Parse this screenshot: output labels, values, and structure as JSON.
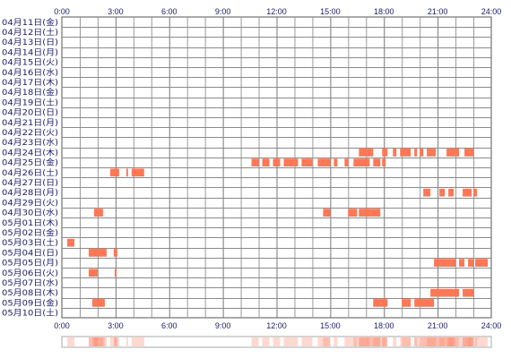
{
  "chart_data": {
    "type": "timeline-heatmap",
    "x_unit": "hour",
    "xlim": [
      0,
      24
    ],
    "x_ticks": [
      {
        "value": 0,
        "label": "0:00"
      },
      {
        "value": 3,
        "label": "3:00"
      },
      {
        "value": 6,
        "label": "6:00"
      },
      {
        "value": 9,
        "label": "9:00"
      },
      {
        "value": 12,
        "label": "12:00"
      },
      {
        "value": 15,
        "label": "15:00"
      },
      {
        "value": 18,
        "label": "18:00"
      },
      {
        "value": 21,
        "label": "21:00"
      },
      {
        "value": 24,
        "label": "24:00"
      }
    ],
    "bar_color": "#ff7755",
    "summary_color": "#ff7755",
    "grid": true,
    "rows": [
      {
        "label": "04月11日(金)",
        "segments": []
      },
      {
        "label": "04月12日(土)",
        "segments": []
      },
      {
        "label": "04月13日(日)",
        "segments": []
      },
      {
        "label": "04月14日(月)",
        "segments": []
      },
      {
        "label": "04月15日(火)",
        "segments": []
      },
      {
        "label": "04月16日(水)",
        "segments": []
      },
      {
        "label": "04月17日(木)",
        "segments": []
      },
      {
        "label": "04月18日(金)",
        "segments": []
      },
      {
        "label": "04月19日(土)",
        "segments": []
      },
      {
        "label": "04月20日(日)",
        "segments": []
      },
      {
        "label": "04月21日(月)",
        "segments": []
      },
      {
        "label": "04月22日(火)",
        "segments": []
      },
      {
        "label": "04月23日(水)",
        "segments": []
      },
      {
        "label": "04月24日(木)",
        "segments": [
          [
            16.6,
            17.4
          ],
          [
            17.9,
            18.2
          ],
          [
            18.5,
            18.7
          ],
          [
            18.9,
            19.5
          ],
          [
            19.7,
            19.85
          ],
          [
            20.0,
            20.2
          ],
          [
            20.4,
            20.9
          ],
          [
            21.5,
            22.2
          ],
          [
            22.5,
            23.0
          ]
        ]
      },
      {
        "label": "04月25日(金)",
        "segments": [
          [
            10.6,
            11.0
          ],
          [
            11.2,
            11.6
          ],
          [
            11.8,
            12.2
          ],
          [
            12.4,
            13.2
          ],
          [
            13.4,
            14.0
          ],
          [
            14.3,
            15.0
          ],
          [
            15.2,
            15.4
          ],
          [
            15.8,
            16.0
          ],
          [
            16.3,
            17.2
          ],
          [
            17.4,
            17.8
          ],
          [
            17.9,
            18.1
          ]
        ]
      },
      {
        "label": "04月26日(土)",
        "segments": [
          [
            2.7,
            3.2
          ],
          [
            3.6,
            3.7
          ],
          [
            3.9,
            4.6
          ]
        ]
      },
      {
        "label": "04月27日(日)",
        "segments": []
      },
      {
        "label": "04月28日(月)",
        "segments": [
          [
            20.2,
            20.6
          ],
          [
            21.1,
            21.4
          ],
          [
            21.6,
            21.9
          ],
          [
            22.4,
            22.9
          ],
          [
            23.0,
            23.2
          ]
        ]
      },
      {
        "label": "04月29日(火)",
        "segments": []
      },
      {
        "label": "04月30日(水)",
        "segments": [
          [
            1.8,
            2.3
          ],
          [
            14.6,
            15.0
          ],
          [
            16.0,
            16.5
          ],
          [
            16.6,
            17.8
          ]
        ]
      },
      {
        "label": "05月01日(木)",
        "segments": []
      },
      {
        "label": "05月02日(金)",
        "segments": []
      },
      {
        "label": "05月03日(土)",
        "segments": [
          [
            0.3,
            0.7
          ]
        ]
      },
      {
        "label": "05月04日(日)",
        "segments": [
          [
            1.5,
            2.5
          ],
          [
            2.9,
            3.1
          ]
        ]
      },
      {
        "label": "05月05日(月)",
        "segments": [
          [
            20.8,
            22.0
          ],
          [
            22.2,
            22.5
          ],
          [
            22.7,
            23.0
          ],
          [
            23.1,
            23.8
          ]
        ]
      },
      {
        "label": "05月06日(火)",
        "segments": [
          [
            1.5,
            2.0
          ],
          [
            2.95,
            3.05
          ]
        ]
      },
      {
        "label": "05月07日(水)",
        "segments": []
      },
      {
        "label": "05月08日(木)",
        "segments": [
          [
            20.6,
            22.2
          ],
          [
            22.4,
            23.0
          ]
        ]
      },
      {
        "label": "05月09日(金)",
        "segments": [
          [
            1.7,
            2.4
          ],
          [
            17.4,
            18.2
          ],
          [
            19.0,
            19.5
          ],
          [
            19.7,
            20.8
          ]
        ]
      },
      {
        "label": "05月10日(土)",
        "segments": []
      }
    ]
  }
}
